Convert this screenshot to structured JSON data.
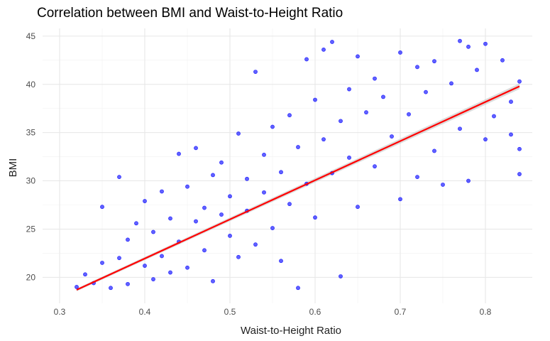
{
  "chart_data": {
    "type": "scatter",
    "title": "Correlation between BMI and Waist-to-Height Ratio",
    "xlabel": "Waist-to-Height Ratio",
    "ylabel": "BMI",
    "xlim": [
      0.28,
      0.855
    ],
    "ylim": [
      17.3,
      45.8
    ],
    "x_ticks": [
      0.3,
      0.4,
      0.5,
      0.6,
      0.7,
      0.8
    ],
    "x_tick_labels": [
      "0.3",
      "0.4",
      "0.5",
      "0.6",
      "0.7",
      "0.8"
    ],
    "y_ticks": [
      20,
      25,
      30,
      35,
      40,
      45
    ],
    "y_tick_labels": [
      "20",
      "25",
      "30",
      "35",
      "40",
      "45"
    ],
    "grid": true,
    "point_color": "#0000ff",
    "line_color": "#ff0000",
    "band_color": "#bfbfbf",
    "fit_line": {
      "x": [
        0.32,
        0.84
      ],
      "y": [
        18.7,
        39.8
      ]
    },
    "series": [
      {
        "points": [
          [
            0.32,
            19.0
          ],
          [
            0.33,
            20.3
          ],
          [
            0.34,
            19.4
          ],
          [
            0.35,
            27.3
          ],
          [
            0.35,
            21.5
          ],
          [
            0.36,
            18.9
          ],
          [
            0.37,
            22.0
          ],
          [
            0.37,
            30.4
          ],
          [
            0.38,
            23.9
          ],
          [
            0.38,
            19.3
          ],
          [
            0.39,
            25.6
          ],
          [
            0.4,
            21.2
          ],
          [
            0.4,
            27.9
          ],
          [
            0.41,
            19.8
          ],
          [
            0.41,
            24.7
          ],
          [
            0.42,
            28.9
          ],
          [
            0.42,
            22.2
          ],
          [
            0.43,
            26.1
          ],
          [
            0.43,
            20.5
          ],
          [
            0.44,
            32.8
          ],
          [
            0.44,
            23.7
          ],
          [
            0.45,
            29.4
          ],
          [
            0.45,
            21.0
          ],
          [
            0.46,
            25.8
          ],
          [
            0.46,
            33.4
          ],
          [
            0.47,
            27.2
          ],
          [
            0.47,
            22.8
          ],
          [
            0.48,
            30.6
          ],
          [
            0.48,
            19.6
          ],
          [
            0.49,
            26.5
          ],
          [
            0.49,
            31.9
          ],
          [
            0.5,
            24.3
          ],
          [
            0.5,
            28.4
          ],
          [
            0.51,
            34.9
          ],
          [
            0.51,
            22.1
          ],
          [
            0.52,
            30.2
          ],
          [
            0.52,
            26.9
          ],
          [
            0.53,
            41.3
          ],
          [
            0.53,
            23.4
          ],
          [
            0.54,
            32.7
          ],
          [
            0.54,
            28.8
          ],
          [
            0.55,
            35.6
          ],
          [
            0.55,
            25.1
          ],
          [
            0.56,
            30.9
          ],
          [
            0.56,
            21.7
          ],
          [
            0.57,
            36.8
          ],
          [
            0.57,
            27.6
          ],
          [
            0.58,
            33.5
          ],
          [
            0.58,
            18.9
          ],
          [
            0.59,
            42.6
          ],
          [
            0.59,
            29.7
          ],
          [
            0.6,
            38.4
          ],
          [
            0.6,
            26.2
          ],
          [
            0.61,
            34.3
          ],
          [
            0.61,
            43.6
          ],
          [
            0.62,
            44.4
          ],
          [
            0.62,
            30.8
          ],
          [
            0.63,
            36.2
          ],
          [
            0.63,
            20.1
          ],
          [
            0.64,
            39.5
          ],
          [
            0.64,
            32.4
          ],
          [
            0.65,
            42.9
          ],
          [
            0.65,
            27.3
          ],
          [
            0.66,
            37.1
          ],
          [
            0.67,
            40.6
          ],
          [
            0.67,
            31.5
          ],
          [
            0.68,
            38.7
          ],
          [
            0.69,
            34.6
          ],
          [
            0.7,
            43.3
          ],
          [
            0.7,
            28.1
          ],
          [
            0.71,
            36.9
          ],
          [
            0.72,
            41.8
          ],
          [
            0.72,
            30.4
          ],
          [
            0.73,
            39.2
          ],
          [
            0.74,
            33.1
          ],
          [
            0.74,
            42.4
          ],
          [
            0.75,
            29.6
          ],
          [
            0.76,
            40.1
          ],
          [
            0.77,
            44.5
          ],
          [
            0.77,
            35.4
          ],
          [
            0.78,
            43.9
          ],
          [
            0.78,
            30.0
          ],
          [
            0.79,
            41.5
          ],
          [
            0.8,
            44.2
          ],
          [
            0.8,
            34.3
          ],
          [
            0.81,
            36.7
          ],
          [
            0.82,
            42.5
          ],
          [
            0.83,
            38.2
          ],
          [
            0.83,
            34.8
          ],
          [
            0.84,
            30.7
          ],
          [
            0.84,
            40.3
          ],
          [
            0.84,
            33.3
          ]
        ]
      }
    ]
  }
}
